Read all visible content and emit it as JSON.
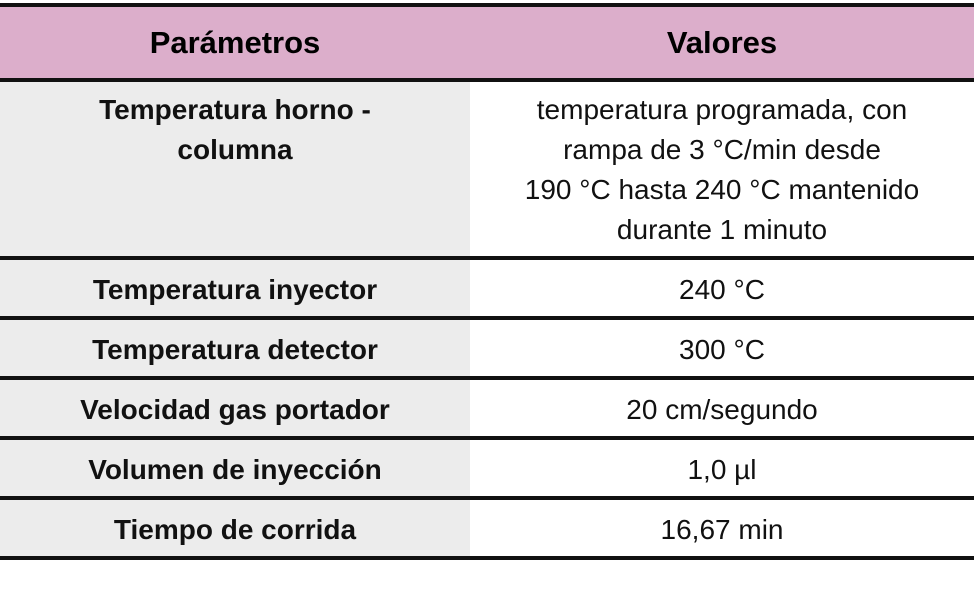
{
  "table": {
    "header": [
      "Parámetros",
      "Valores"
    ],
    "rows": [
      [
        [
          "Temperatura horno -",
          "columna"
        ],
        [
          "temperatura programada, con",
          "rampa de 3 °C/min desde",
          "190 °C hasta 240 °C mantenido",
          "durante 1 minuto"
        ]
      ],
      [
        "Temperatura inyector",
        "240 °C"
      ],
      [
        "Temperatura detector",
        "300 °C"
      ],
      [
        "Velocidad gas portador",
        "20 cm/segundo"
      ],
      [
        "Volumen de inyección",
        "1,0 µl"
      ],
      [
        "Tiempo de corrida",
        "16,67 min"
      ]
    ]
  }
}
